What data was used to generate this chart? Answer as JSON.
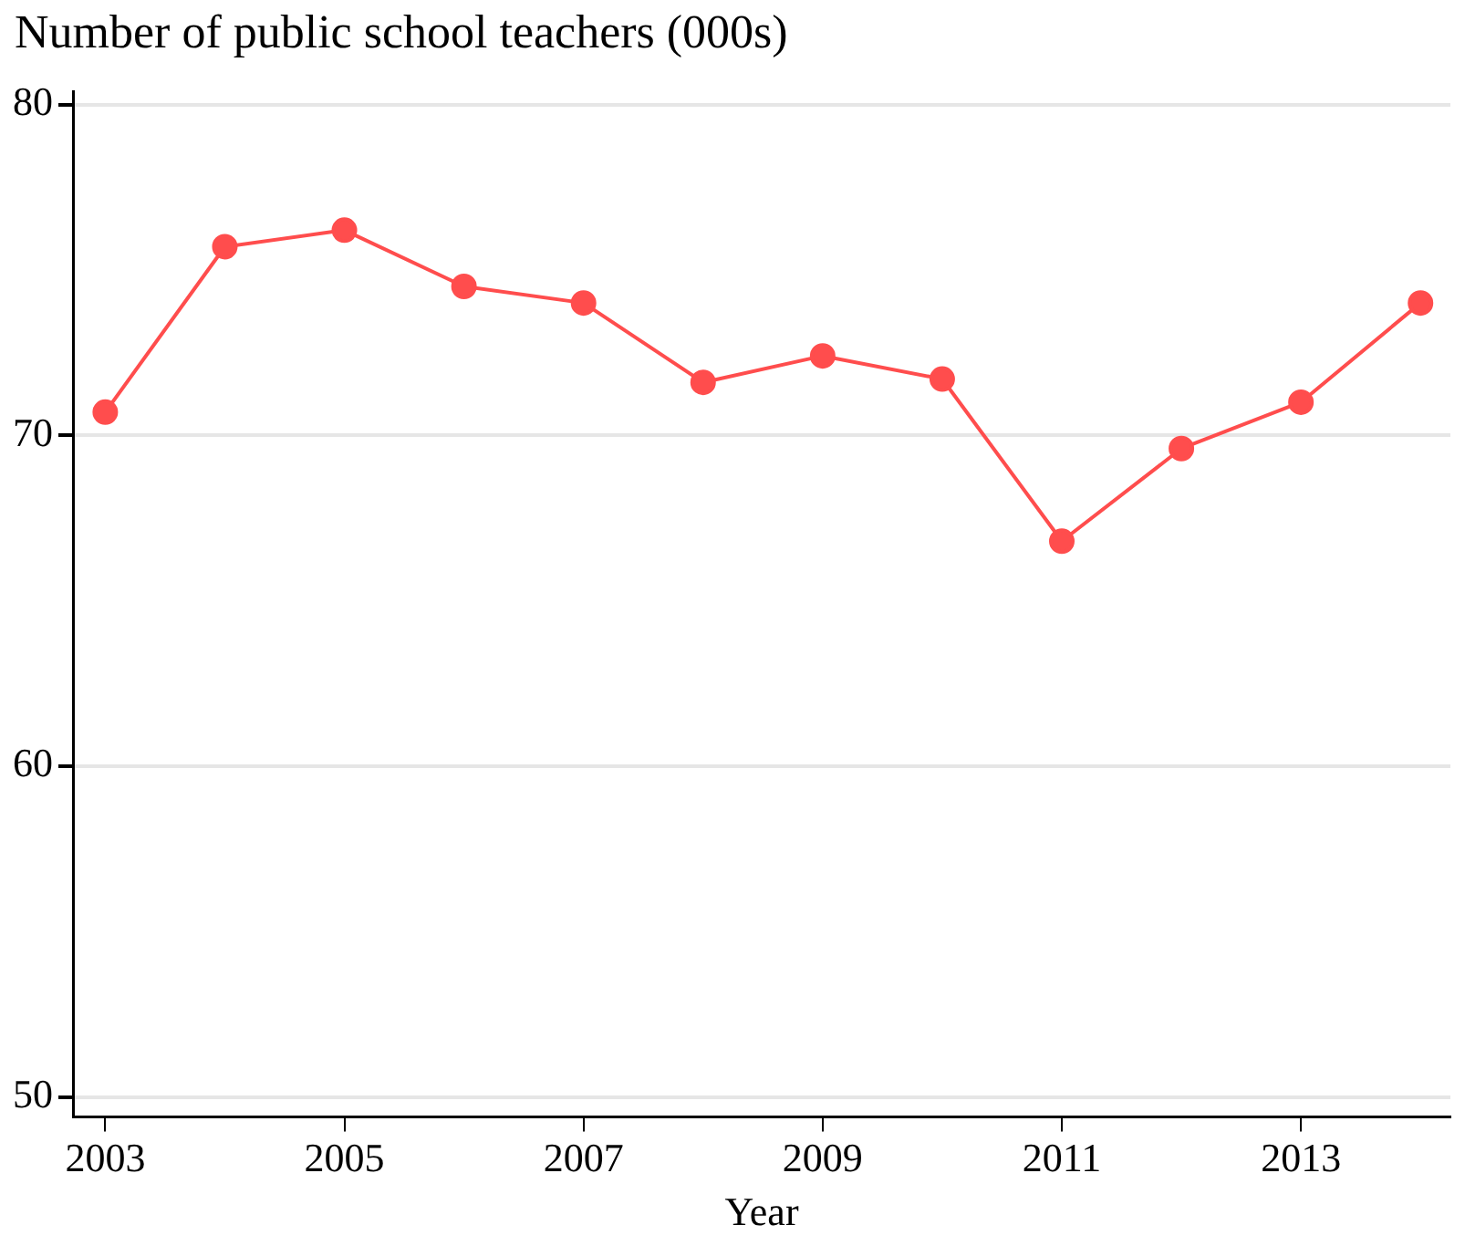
{
  "chart_data": {
    "type": "line",
    "ylabel": "Number of public school teachers (000s)",
    "xlabel": "Year",
    "x": [
      2003,
      2004,
      2005,
      2006,
      2007,
      2008,
      2009,
      2010,
      2011,
      2012,
      2013,
      2014
    ],
    "series": [
      {
        "color": "#ff4d4d",
        "values": [
          70.7,
          75.7,
          76.2,
          74.5,
          74.0,
          71.6,
          72.4,
          71.7,
          66.8,
          69.6,
          71.0,
          74.0
        ]
      }
    ],
    "xlim": [
      2002.73,
      2014.25
    ],
    "xticks": [
      2003,
      2005,
      2007,
      2009,
      2011,
      2013
    ],
    "ylim": [
      49.4,
      80.4
    ],
    "yticks": [
      50,
      60,
      70,
      80
    ],
    "grid": "y",
    "legend": false,
    "marker": "circle",
    "line_style": "solid"
  }
}
